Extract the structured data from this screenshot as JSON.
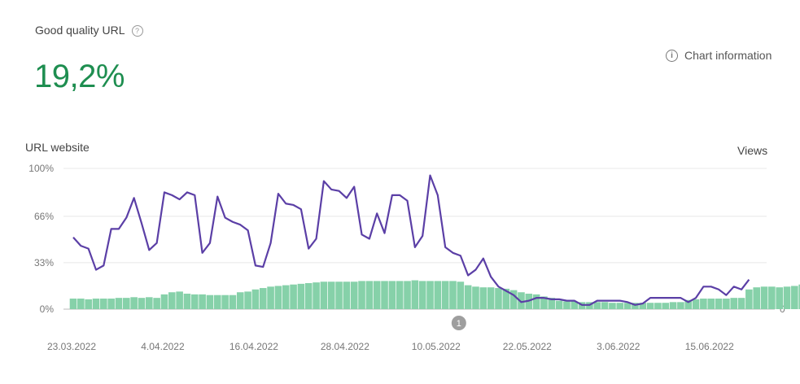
{
  "header": {
    "metric_label": "Good quality URL",
    "help_icon": "question-circle-icon",
    "metric_value": "19,2%",
    "chart_info_label": "Chart information",
    "chart_info_icon": "info-circle-icon"
  },
  "colors": {
    "line": "#5b3fa6",
    "bars": "#86d1a9",
    "value": "#1e8e50",
    "grid": "#e8e8e8"
  },
  "chart_data": {
    "type": "bar+line",
    "left_axis_title": "URL website",
    "right_axis_title": "Views",
    "y_ticks": [
      {
        "value": 0,
        "label": "0%"
      },
      {
        "value": 33,
        "label": "33%"
      },
      {
        "value": 66,
        "label": "66%"
      },
      {
        "value": 100,
        "label": "100%"
      }
    ],
    "right_ticks": [
      {
        "value": 0,
        "label": "0"
      }
    ],
    "ylim": [
      0,
      100
    ],
    "x_labels": [
      {
        "day": 0,
        "label": "23.03.2022"
      },
      {
        "day": 12,
        "label": "4.04.2022"
      },
      {
        "day": 24,
        "label": "16.04.2022"
      },
      {
        "day": 36,
        "label": "28.04.2022"
      },
      {
        "day": 48,
        "label": "10.05.2022"
      },
      {
        "day": 60,
        "label": "22.05.2022"
      },
      {
        "day": 72,
        "label": "3.06.2022"
      },
      {
        "day": 84,
        "label": "15.06.2022"
      }
    ],
    "annotation": {
      "day": 51,
      "label": "1"
    },
    "series": [
      {
        "name": "Views",
        "type": "bar",
        "values": [
          7.5,
          7.5,
          7,
          7.5,
          7.5,
          7.5,
          8,
          8,
          8.5,
          8,
          8.5,
          8,
          10.5,
          12,
          12.5,
          11,
          10.5,
          10.5,
          10,
          10,
          10,
          10,
          12,
          12.5,
          14,
          15,
          16,
          16.5,
          17,
          17.5,
          18,
          18.5,
          19,
          19.5,
          19.5,
          19.5,
          19.5,
          19.5,
          20,
          20,
          20,
          20,
          20,
          20,
          20,
          20.5,
          20,
          20,
          20,
          20,
          20,
          19.5,
          17,
          16,
          15.5,
          15.5,
          15,
          14.5,
          13.5,
          12,
          11,
          10.5,
          9,
          8,
          6,
          5.5,
          5.5,
          5,
          5,
          5,
          5,
          4.5,
          4.5,
          4.5,
          4.5,
          4.5,
          4.5,
          4.5,
          4.5,
          5,
          5,
          6.5,
          7,
          7.5,
          7.5,
          7.5,
          7.5,
          8,
          8,
          14,
          15.5,
          16,
          16,
          15.5,
          16,
          16.5,
          17.5,
          19,
          20,
          20.5
        ]
      },
      {
        "name": "Good quality URL %",
        "type": "line",
        "values": [
          51,
          45,
          43,
          28,
          31,
          57,
          57,
          65,
          79,
          61,
          42,
          47,
          83,
          81,
          78,
          83,
          81,
          40,
          47,
          80,
          65,
          62,
          60,
          56,
          31,
          30,
          47,
          82,
          75,
          74,
          71,
          43,
          50,
          91,
          85,
          84,
          79,
          87,
          53,
          50,
          68,
          54,
          81,
          81,
          77,
          44,
          52,
          95,
          81,
          44,
          40,
          38,
          24,
          28,
          36,
          23,
          16,
          13,
          10,
          5,
          6,
          8,
          8,
          7,
          7,
          6,
          6,
          3,
          3,
          6,
          6,
          6,
          6,
          5,
          3,
          4,
          8,
          8,
          8,
          8,
          8,
          5,
          8,
          16,
          16,
          14,
          10,
          16,
          14,
          21
        ]
      }
    ]
  }
}
